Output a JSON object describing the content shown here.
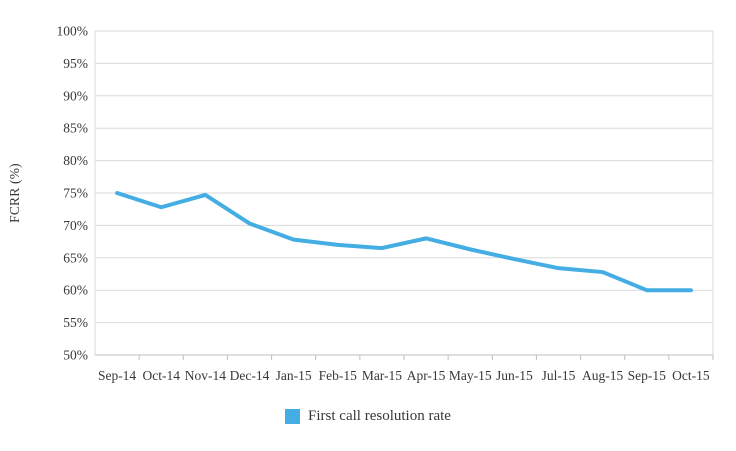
{
  "chart_data": {
    "type": "line",
    "title": "",
    "xlabel": "",
    "ylabel": "FCRR (%)",
    "categories": [
      "Sep-14",
      "Oct-14",
      "Nov-14",
      "Dec-14",
      "Jan-15",
      "Feb-15",
      "Mar-15",
      "Apr-15",
      "May-15",
      "Jun-15",
      "Jul-15",
      "Aug-15",
      "Sep-15",
      "Oct-15"
    ],
    "series": [
      {
        "name": "First call resolution rate",
        "values": [
          75,
          72.8,
          74.7,
          70.3,
          67.8,
          67,
          66.5,
          68,
          66.3,
          64.8,
          63.4,
          62.8,
          60,
          60
        ],
        "color": "#44ADE3"
      }
    ],
    "ylim": [
      50,
      100
    ],
    "ytick_step": 5,
    "ytick_labels": [
      "50%",
      "55%",
      "60%",
      "65%",
      "70%",
      "75%",
      "80%",
      "85%",
      "90%",
      "95%",
      "100%"
    ],
    "grid": "horizontal",
    "legend_position": "bottom"
  },
  "legend": {
    "items": [
      {
        "label": "First call resolution rate",
        "swatch_color": "#44ADE3"
      }
    ]
  },
  "colors": {
    "line": "#44ADE3",
    "gridline": "#d9d9d9",
    "axis": "#bfbfbf",
    "text": "#383838",
    "background": "#ffffff"
  }
}
